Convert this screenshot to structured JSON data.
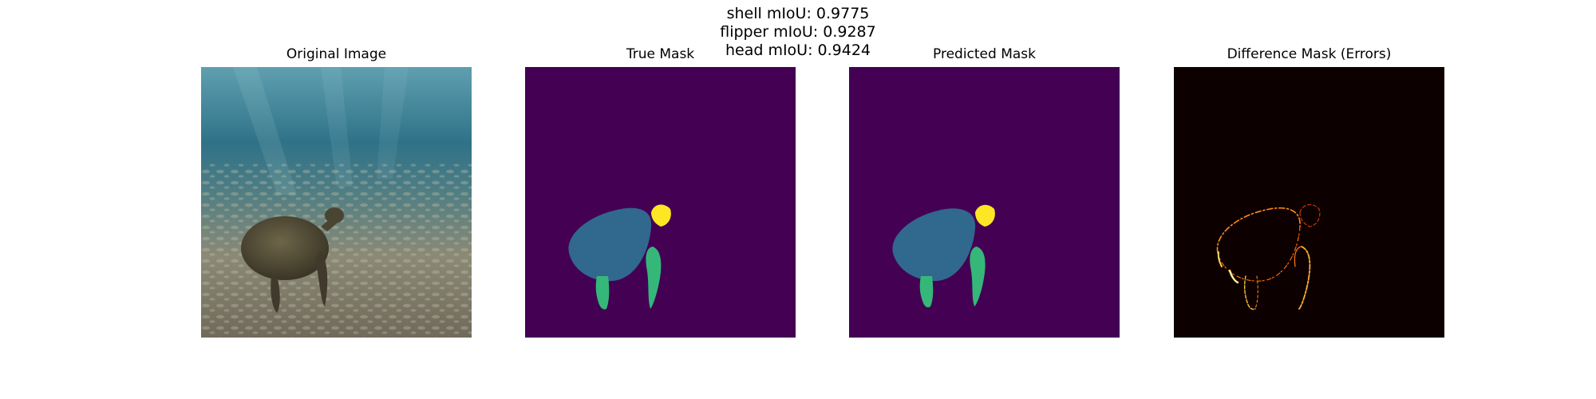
{
  "suptitle": {
    "lines": [
      "shell mIoU: 0.9775",
      "flipper mIoU: 0.9287",
      "head mIoU: 0.9424"
    ]
  },
  "panels": [
    {
      "title": "Original Image"
    },
    {
      "title": "True Mask"
    },
    {
      "title": "Predicted Mask"
    },
    {
      "title": "Difference Mask (Errors)"
    }
  ],
  "colors": {
    "background_class": "#440154",
    "shell_class": "#31688e",
    "flipper_class": "#35b779",
    "head_class": "#fde725",
    "error_background": "#0d0000",
    "error_edge": "#ff8c1a"
  }
}
